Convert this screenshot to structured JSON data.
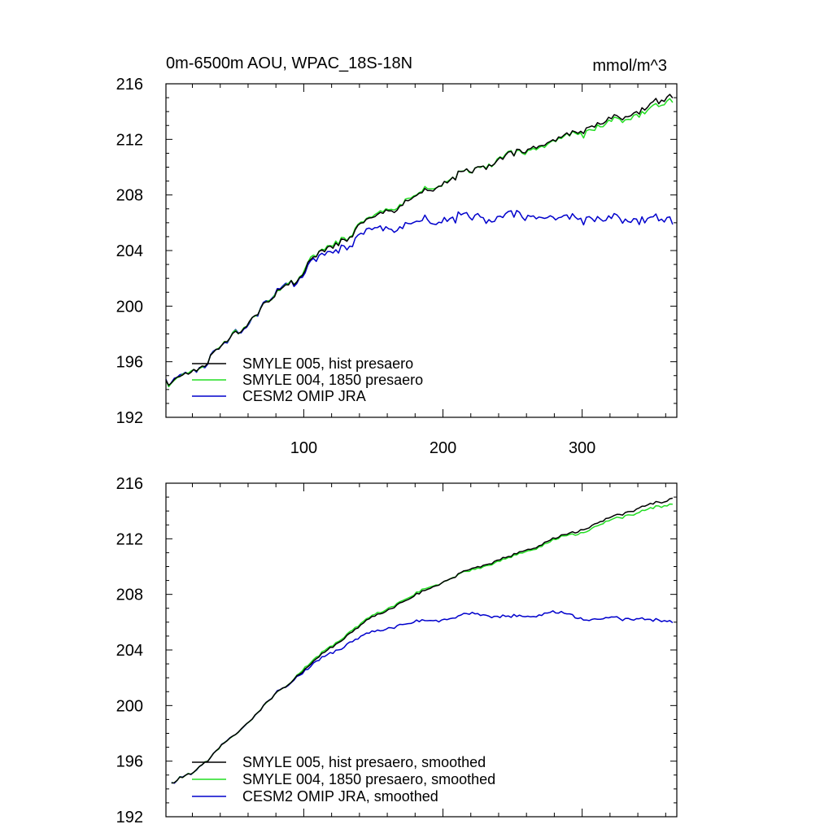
{
  "chart_data": [
    {
      "type": "line",
      "title": "0m-6500m AOU, WPAC_18S-18N",
      "units": "mmol/m^3",
      "xlim": [
        1,
        368
      ],
      "ylim": [
        192,
        216
      ],
      "x_ticks": [
        100,
        200,
        300
      ],
      "x_tick_labels": [
        "100",
        "200",
        "300"
      ],
      "y_ticks": [
        192,
        196,
        200,
        204,
        208,
        212,
        216
      ],
      "y_tick_labels": [
        "192",
        "196",
        "200",
        "204",
        "208",
        "212",
        "216"
      ],
      "grid": false,
      "legend_position": "bottom-left",
      "x": [
        1,
        5,
        10,
        15,
        20,
        30,
        40,
        50,
        60,
        70,
        80,
        90,
        100,
        110,
        120,
        130,
        140,
        150,
        160,
        170,
        180,
        190,
        200,
        210,
        220,
        230,
        240,
        250,
        260,
        270,
        280,
        290,
        300,
        310,
        320,
        330,
        340,
        350,
        360,
        365
      ],
      "series": [
        {
          "name": "SMYLE 005, hist presaero",
          "color": "#000000",
          "values": [
            194.4,
            194.2,
            194.7,
            195.0,
            195.3,
            196.0,
            197.1,
            197.9,
            198.9,
            199.9,
            200.8,
            201.7,
            202.6,
            203.6,
            204.3,
            205.0,
            205.7,
            206.3,
            206.9,
            207.4,
            207.9,
            208.4,
            208.9,
            209.3,
            209.7,
            210.1,
            210.5,
            210.8,
            211.2,
            211.6,
            212.0,
            212.3,
            212.7,
            213.0,
            213.4,
            213.7,
            214.0,
            214.4,
            214.8,
            215.1
          ],
          "noise": 0.35
        },
        {
          "name": "SMYLE 004, 1850 presaero",
          "color": "#22dd22",
          "values": [
            194.4,
            194.2,
            194.7,
            195.0,
            195.3,
            196.0,
            197.1,
            197.9,
            198.9,
            199.9,
            200.8,
            201.7,
            202.7,
            203.7,
            204.4,
            205.1,
            205.8,
            206.4,
            207.0,
            207.5,
            208.0,
            208.5,
            208.9,
            209.3,
            209.7,
            210.1,
            210.5,
            210.8,
            211.1,
            211.5,
            211.9,
            212.2,
            212.5,
            212.8,
            213.2,
            213.5,
            213.8,
            214.1,
            214.5,
            214.8
          ],
          "noise": 0.35
        },
        {
          "name": "CESM2 OMIP JRA",
          "color": "#0000cc",
          "values": [
            194.4,
            194.2,
            194.7,
            195.0,
            195.3,
            196.0,
            197.1,
            197.9,
            198.9,
            199.9,
            200.8,
            201.7,
            202.5,
            203.3,
            203.9,
            204.5,
            205.0,
            205.4,
            205.7,
            205.9,
            206.1,
            206.2,
            206.2,
            206.3,
            206.4,
            206.3,
            206.3,
            206.4,
            206.4,
            206.5,
            206.4,
            206.3,
            206.4,
            206.3,
            206.2,
            206.3,
            206.2,
            206.1,
            206.1,
            206.1
          ],
          "noise": 0.45
        }
      ]
    },
    {
      "type": "line",
      "title": "",
      "xlim": [
        1,
        368
      ],
      "ylim": [
        192,
        216
      ],
      "x_ticks": [
        100,
        200,
        300
      ],
      "x_tick_labels": [
        "",
        "",
        ""
      ],
      "y_ticks": [
        192,
        196,
        200,
        204,
        208,
        212,
        216
      ],
      "y_tick_labels": [
        "192",
        "196",
        "200",
        "204",
        "208",
        "212",
        "216"
      ],
      "grid": false,
      "legend_position": "bottom-left",
      "x": [
        5,
        10,
        15,
        20,
        30,
        40,
        50,
        60,
        70,
        80,
        90,
        100,
        110,
        120,
        130,
        140,
        150,
        160,
        170,
        180,
        190,
        200,
        210,
        220,
        230,
        240,
        250,
        260,
        270,
        280,
        290,
        300,
        310,
        320,
        330,
        340,
        350,
        360,
        365
      ],
      "series": [
        {
          "name": "SMYLE 005, hist presaero, smoothed",
          "color": "#000000",
          "values": [
            194.3,
            194.7,
            194.9,
            195.2,
            196.0,
            197.0,
            197.8,
            198.8,
            199.8,
            200.8,
            201.7,
            202.6,
            203.4,
            204.2,
            205.0,
            205.7,
            206.4,
            206.9,
            207.4,
            207.9,
            208.4,
            208.9,
            209.3,
            209.8,
            210.1,
            210.5,
            210.8,
            211.2,
            211.6,
            212.0,
            212.3,
            212.7,
            213.1,
            213.5,
            213.8,
            214.2,
            214.5,
            214.6,
            215.0
          ],
          "noise": 0.12
        },
        {
          "name": "SMYLE 004, 1850 presaero, smoothed",
          "color": "#22dd22",
          "values": [
            194.3,
            194.7,
            194.9,
            195.2,
            196.0,
            197.0,
            197.8,
            198.8,
            199.8,
            200.8,
            201.7,
            202.7,
            203.5,
            204.3,
            205.1,
            205.8,
            206.5,
            207.0,
            207.5,
            208.0,
            208.5,
            208.9,
            209.3,
            209.7,
            210.0,
            210.4,
            210.7,
            211.1,
            211.5,
            211.9,
            212.2,
            212.5,
            212.9,
            213.3,
            213.6,
            213.9,
            214.2,
            214.3,
            214.6
          ],
          "noise": 0.12
        },
        {
          "name": "CESM2 OMIP JRA, smoothed",
          "color": "#0000cc",
          "values": [
            194.3,
            194.7,
            194.9,
            195.2,
            196.0,
            197.0,
            197.8,
            198.8,
            199.8,
            200.8,
            201.7,
            202.5,
            203.2,
            203.8,
            204.4,
            204.9,
            205.3,
            205.6,
            205.8,
            206.0,
            206.1,
            206.2,
            206.3,
            206.6,
            206.5,
            206.4,
            206.4,
            206.4,
            206.6,
            206.7,
            206.5,
            206.3,
            206.2,
            206.3,
            206.2,
            206.3,
            206.1,
            206.0,
            206.1
          ],
          "noise": 0.15
        }
      ]
    }
  ]
}
